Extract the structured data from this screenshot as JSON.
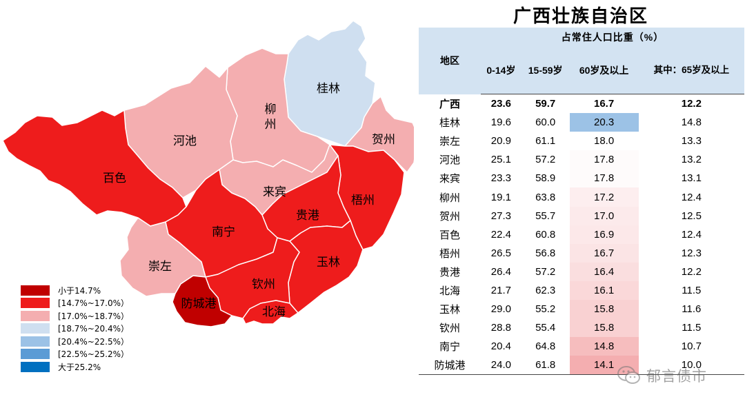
{
  "title": "广西壮族自治区",
  "legend": [
    {
      "label": "小于14.7%",
      "color": "#c00000"
    },
    {
      "label": "[14.7%~17.0%）",
      "color": "#ee1c1c"
    },
    {
      "label": "[17.0%~18.7%）",
      "color": "#f4aeb0"
    },
    {
      "label": "[18.7%~20.4%）",
      "color": "#cfdff0"
    },
    {
      "label": "[20.4%~22.5%）",
      "color": "#9cc2e6"
    },
    {
      "label": "[22.5%~25.2%）",
      "color": "#5b9bd5"
    },
    {
      "label": "大于25.2%",
      "color": "#0070c0"
    }
  ],
  "map_labels": [
    "桂林",
    "柳州",
    "贺州",
    "河池",
    "百色",
    "来宾",
    "梧州",
    "贵港",
    "南宁",
    "崇左",
    "玉林",
    "钦州",
    "防城港",
    "北海"
  ],
  "table": {
    "group_header": "占常住人口比重（%）",
    "region_header": "地区",
    "columns": [
      "0-14岁",
      "15-59岁",
      "60岁及以上",
      "其中：65岁及以上"
    ],
    "rows": [
      {
        "region": "广西",
        "v": [
          "23.6",
          "59.7",
          "16.7",
          "12.2"
        ]
      },
      {
        "region": "桂林",
        "v": [
          "19.6",
          "60.0",
          "20.3",
          "14.8"
        ]
      },
      {
        "region": "崇左",
        "v": [
          "20.9",
          "61.1",
          "18.0",
          "13.3"
        ]
      },
      {
        "region": "河池",
        "v": [
          "25.1",
          "57.2",
          "17.8",
          "13.2"
        ]
      },
      {
        "region": "来宾",
        "v": [
          "23.3",
          "58.9",
          "17.8",
          "13.1"
        ]
      },
      {
        "region": "柳州",
        "v": [
          "19.1",
          "63.8",
          "17.2",
          "12.4"
        ]
      },
      {
        "region": "贺州",
        "v": [
          "27.3",
          "55.7",
          "17.0",
          "12.5"
        ]
      },
      {
        "region": "百色",
        "v": [
          "22.4",
          "60.8",
          "16.9",
          "12.4"
        ]
      },
      {
        "region": "梧州",
        "v": [
          "26.5",
          "56.8",
          "16.7",
          "12.3"
        ]
      },
      {
        "region": "贵港",
        "v": [
          "26.4",
          "57.2",
          "16.4",
          "12.2"
        ]
      },
      {
        "region": "北海",
        "v": [
          "21.7",
          "62.3",
          "16.1",
          "11.5"
        ]
      },
      {
        "region": "玉林",
        "v": [
          "29.0",
          "55.2",
          "15.8",
          "11.6"
        ]
      },
      {
        "region": "钦州",
        "v": [
          "28.8",
          "55.4",
          "15.8",
          "11.5"
        ]
      },
      {
        "region": "南宁",
        "v": [
          "20.4",
          "64.8",
          "14.8",
          "10.7"
        ]
      },
      {
        "region": "防城港",
        "v": [
          "24.0",
          "61.8",
          "14.1",
          "10.0"
        ]
      }
    ]
  },
  "chart_data": {
    "type": "table",
    "title": "广西壮族自治区",
    "categories": [
      "桂林",
      "崇左",
      "河池",
      "来宾",
      "柳州",
      "贺州",
      "百色",
      "梧州",
      "贵港",
      "北海",
      "玉林",
      "钦州",
      "南宁",
      "防城港"
    ],
    "series": [
      {
        "name": "0-14岁",
        "values": [
          19.6,
          20.9,
          25.1,
          23.3,
          19.1,
          27.3,
          22.4,
          26.5,
          26.4,
          21.7,
          29.0,
          28.8,
          20.4,
          24.0
        ]
      },
      {
        "name": "15-59岁",
        "values": [
          60.0,
          61.1,
          57.2,
          58.9,
          63.8,
          55.7,
          60.8,
          56.8,
          57.2,
          62.3,
          55.2,
          55.4,
          64.8,
          61.8
        ]
      },
      {
        "name": "60岁及以上",
        "values": [
          20.3,
          18.0,
          17.8,
          17.8,
          17.2,
          17.0,
          16.9,
          16.7,
          16.4,
          16.1,
          15.8,
          15.8,
          14.8,
          14.1
        ]
      },
      {
        "name": "其中：65岁及以上",
        "values": [
          14.8,
          13.3,
          13.2,
          13.1,
          12.4,
          12.5,
          12.4,
          12.3,
          12.2,
          11.5,
          11.6,
          11.5,
          10.7,
          10.0
        ]
      }
    ],
    "total": {
      "region": "广西",
      "values": [
        23.6,
        59.7,
        16.7,
        12.2
      ]
    },
    "map_bins": {
      "桂林": "[18.7%~20.4%）",
      "柳州": "[17.0%~18.7%）",
      "贺州": "[17.0%~18.7%）",
      "河池": "[17.0%~18.7%）",
      "来宾": "[17.0%~18.7%）",
      "崇左": "[17.0%~18.7%）",
      "百色": "[14.7%~17.0%）",
      "梧州": "[14.7%~17.0%）",
      "贵港": "[14.7%~17.0%）",
      "南宁": "[14.7%~17.0%）",
      "玉林": "[14.7%~17.0%）",
      "钦州": "[14.7%~17.0%）",
      "北海": "[14.7%~17.0%）",
      "防城港": "小于14.7%"
    }
  },
  "heat_colors": {
    "low": "#f4aeb0",
    "high": "#ffffff",
    "top": "#9cc2e6"
  },
  "watermark": "郁言债市"
}
